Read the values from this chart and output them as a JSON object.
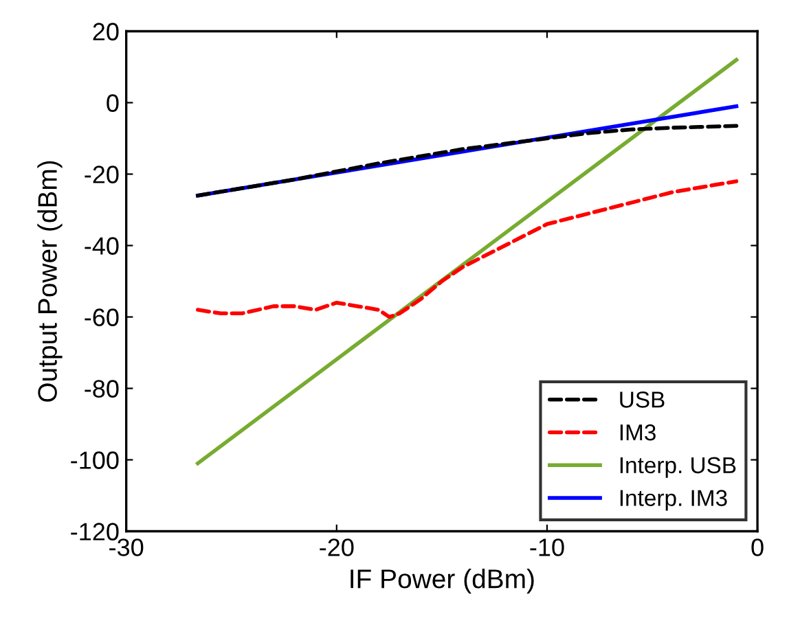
{
  "chart_data": {
    "type": "line",
    "xlabel": "IF Power (dBm)",
    "ylabel": "Output Power (dBm)",
    "xlim": [
      -30,
      0
    ],
    "xticks": [
      -30,
      -20,
      -10,
      0
    ],
    "ylim": [
      -120,
      20
    ],
    "yticks": [
      -120,
      -100,
      -80,
      -60,
      -40,
      -20,
      0,
      20
    ],
    "grid": false,
    "legend": "bottom right",
    "series": [
      {
        "name": "USB",
        "color": "#000000",
        "line_style": "dashed",
        "x": [
          -26.6,
          -22,
          -18,
          -14,
          -12,
          -10,
          -8,
          -6,
          -4,
          -1
        ],
        "values": [
          -26,
          -21.5,
          -17,
          -13,
          -11.5,
          -10,
          -8.5,
          -7.5,
          -7,
          -6.5
        ]
      },
      {
        "name": "IM3",
        "color": "#ff0000",
        "line_style": "dashed",
        "x": [
          -26.6,
          -25.5,
          -24.5,
          -23,
          -22,
          -21,
          -20,
          -19,
          -18,
          -17.5,
          -17,
          -16,
          -15,
          -14,
          -12,
          -10,
          -8,
          -6,
          -4,
          -1
        ],
        "values": [
          -58,
          -59,
          -59,
          -57,
          -57,
          -58,
          -56,
          -57,
          -58,
          -60,
          -59,
          -55,
          -50,
          -46,
          -40,
          -34,
          -31,
          -28,
          -25,
          -22
        ]
      },
      {
        "name": "Interp. USB",
        "color": "#77ac30",
        "line_style": "solid",
        "x": [
          -26.6,
          -1
        ],
        "values": [
          -101,
          12
        ]
      },
      {
        "name": "Interp. IM3",
        "color": "#0000ff",
        "line_style": "solid",
        "x": [
          -26.6,
          -1
        ],
        "values": [
          -26,
          -1
        ]
      }
    ]
  }
}
